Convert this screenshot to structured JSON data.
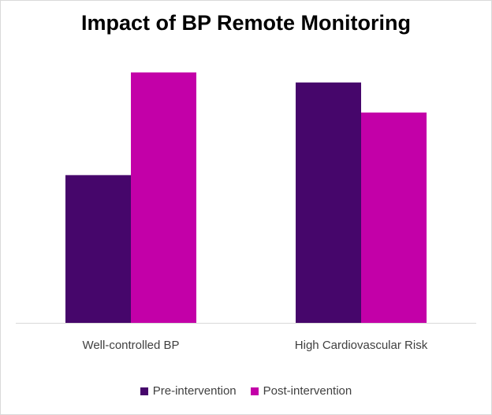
{
  "chart_data": {
    "type": "bar",
    "title": "Impact of BP Remote Monitoring",
    "categories": [
      "Well-controlled BP",
      "High Cardiovascular Risk"
    ],
    "series": [
      {
        "name": "Pre-intervention",
        "color": "#46066b",
        "values": [
          59,
          96
        ]
      },
      {
        "name": "Post-intervention",
        "color": "#c300a8",
        "values": [
          100,
          84
        ]
      }
    ],
    "xlabel": "",
    "ylabel": "",
    "ylim": [
      0,
      100
    ],
    "grid": false,
    "legend_position": "bottom"
  }
}
